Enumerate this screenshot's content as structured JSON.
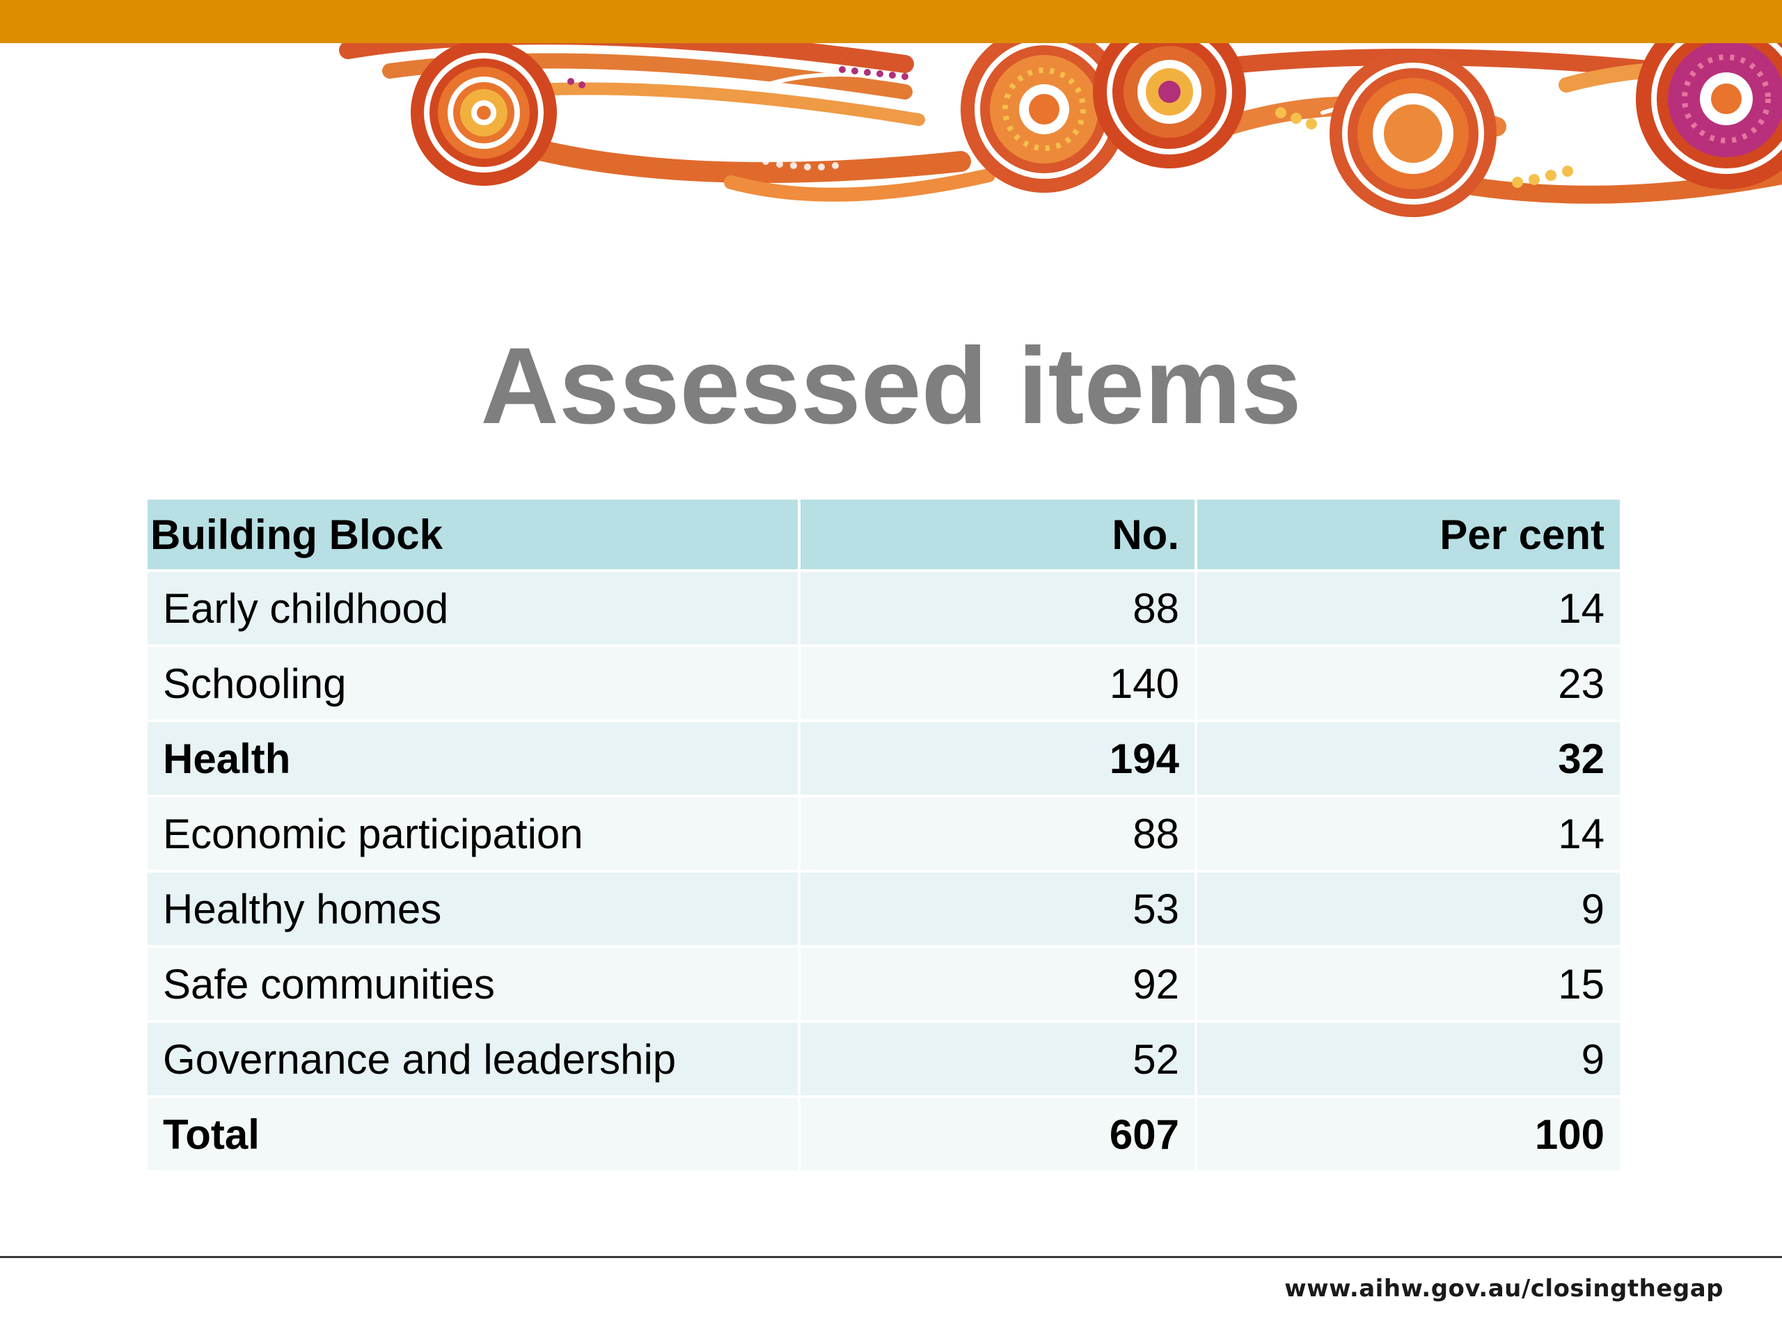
{
  "slide": {
    "title": "Assessed items",
    "footer_url": "www.aihw.gov.au/closingthegap"
  },
  "table": {
    "headers": [
      "Building Block",
      "No.",
      "Per cent"
    ],
    "rows": [
      {
        "label": "Early childhood",
        "number": "88",
        "percent": "14",
        "bold": false
      },
      {
        "label": "Schooling",
        "number": "140",
        "percent": "23",
        "bold": false
      },
      {
        "label": "Health",
        "number": "194",
        "percent": "32",
        "bold": true
      },
      {
        "label": "Economic participation",
        "number": "88",
        "percent": "14",
        "bold": false
      },
      {
        "label": "Healthy homes",
        "number": "53",
        "percent": "9",
        "bold": false
      },
      {
        "label": "Safe communities",
        "number": "92",
        "percent": "15",
        "bold": false
      },
      {
        "label": "Governance and leadership",
        "number": "52",
        "percent": "9",
        "bold": false
      },
      {
        "label": "Total",
        "number": "607",
        "percent": "100",
        "bold": true
      }
    ]
  },
  "colors": {
    "top_bar": "#dd8e00",
    "title": "#7f7f7f",
    "header_bg": "#b7dfe4",
    "row_odd": "#e7f3f4",
    "row_even": "#f3f8f9"
  }
}
